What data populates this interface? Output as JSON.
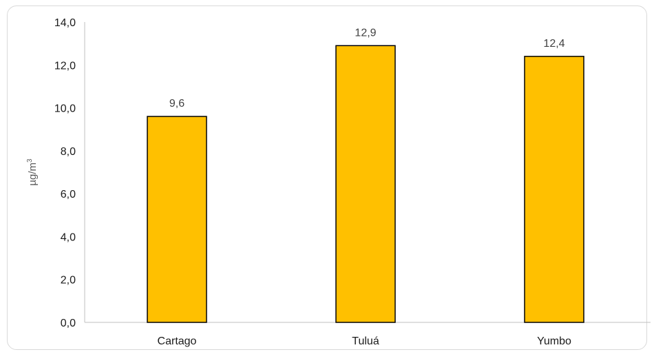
{
  "chart_data": {
    "type": "bar",
    "categories": [
      "Cartago",
      "Tuluá",
      "Yumbo"
    ],
    "values": [
      9.6,
      12.9,
      12.4
    ],
    "data_labels": [
      "9,6",
      "12,9",
      "12,4"
    ],
    "ylabel": "µg/m",
    "ylabel_superscript": "3",
    "ylim": [
      0,
      14
    ],
    "yticks": [
      0,
      2,
      4,
      6,
      8,
      10,
      12,
      14
    ],
    "ytick_labels": [
      "0,0",
      "2,0",
      "4,0",
      "6,0",
      "8,0",
      "10,0",
      "12,0",
      "14,0"
    ],
    "grid": false,
    "legend": "none",
    "bar_color": "#FFC000",
    "bar_edge_color": "#000000"
  }
}
